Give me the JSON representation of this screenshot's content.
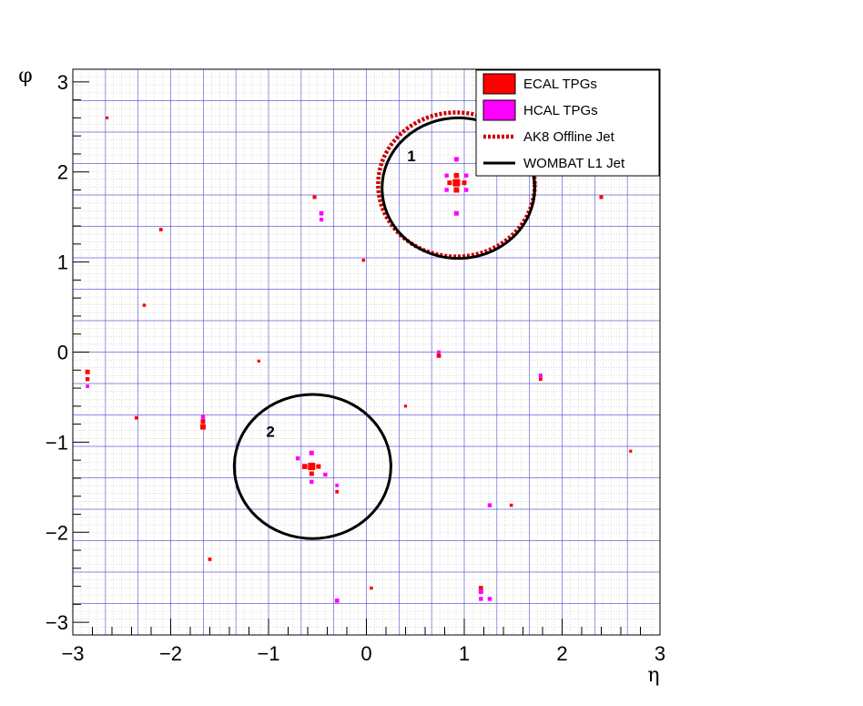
{
  "chart_data": {
    "type": "scatter",
    "title": "",
    "xlabel": "η",
    "ylabel": "φ",
    "xlim": [
      -3,
      3
    ],
    "ylim": [
      -3.14,
      3.14
    ],
    "x_ticks": [
      -3,
      -2,
      -1,
      0,
      1,
      2,
      3
    ],
    "x_tick_labels": [
      "−3",
      "−2",
      "−1",
      "0",
      "1",
      "2",
      "3"
    ],
    "y_ticks": [
      -3,
      -2,
      -1,
      0,
      1,
      2,
      3
    ],
    "y_tick_labels": [
      "−3",
      "−2",
      "−1",
      "0",
      "1",
      "2",
      "3"
    ],
    "grid": true,
    "grid_color": "#3b3bd6",
    "legend_position": "top-right",
    "legend": [
      {
        "label": "ECAL TPGs",
        "style": "box",
        "color": "#ff0000"
      },
      {
        "label": "HCAL TPGs",
        "style": "box",
        "color": "#ff00ff"
      },
      {
        "label": "AK8 Offline Jet",
        "style": "dotted-line",
        "color": "#cc0000"
      },
      {
        "label": "WOMBAT L1 Jet",
        "style": "line",
        "color": "#000000"
      }
    ],
    "jets": [
      {
        "label": "1",
        "label_eta": 0.46,
        "label_phi": 2.12,
        "offline": {
          "eta": 0.92,
          "phi": 1.86,
          "radius": 0.8
        },
        "l1": {
          "eta": 0.94,
          "phi": 1.82,
          "radius": 0.78
        }
      },
      {
        "label": "2",
        "label_eta": -0.98,
        "label_phi": -0.94,
        "offline": null,
        "l1": {
          "eta": -0.55,
          "phi": -1.27,
          "radius": 0.8
        }
      }
    ],
    "series": [
      {
        "name": "ECAL TPGs",
        "color": "#ff0000",
        "points": [
          {
            "eta": 0.92,
            "phi": 1.88,
            "size": 2
          },
          {
            "eta": 0.92,
            "phi": 1.8,
            "size": 1.3
          },
          {
            "eta": 0.92,
            "phi": 1.96,
            "size": 1.2
          },
          {
            "eta": 0.85,
            "phi": 1.88,
            "size": 1
          },
          {
            "eta": 1.0,
            "phi": 1.88,
            "size": 1
          },
          {
            "eta": -0.56,
            "phi": -1.27,
            "size": 2
          },
          {
            "eta": -0.63,
            "phi": -1.27,
            "size": 1.2
          },
          {
            "eta": -0.56,
            "phi": -1.35,
            "size": 1
          },
          {
            "eta": -0.49,
            "phi": -1.27,
            "size": 1
          },
          {
            "eta": -1.67,
            "phi": -0.83,
            "size": 1.3
          },
          {
            "eta": -1.67,
            "phi": -0.77,
            "size": 1
          },
          {
            "eta": -2.85,
            "phi": -0.22,
            "size": 1
          },
          {
            "eta": -2.85,
            "phi": -0.3,
            "size": 0.8
          },
          {
            "eta": 0.74,
            "phi": -0.04,
            "size": 0.9
          },
          {
            "eta": 1.17,
            "phi": -2.62,
            "size": 0.9
          },
          {
            "eta": -0.53,
            "phi": 1.72,
            "size": 0.7
          },
          {
            "eta": 2.4,
            "phi": 1.72,
            "size": 0.7
          },
          {
            "eta": -2.1,
            "phi": 1.36,
            "size": 0.6
          },
          {
            "eta": -2.35,
            "phi": -0.73,
            "size": 0.6
          },
          {
            "eta": 1.78,
            "phi": -0.3,
            "size": 0.6
          },
          {
            "eta": -1.6,
            "phi": -2.3,
            "size": 0.6
          },
          {
            "eta": -0.3,
            "phi": -1.55,
            "size": 0.6
          },
          {
            "eta": 0.05,
            "phi": -2.62,
            "size": 0.5
          },
          {
            "eta": -0.03,
            "phi": 1.02,
            "size": 0.5
          },
          {
            "eta": -2.27,
            "phi": 0.52,
            "size": 0.5
          },
          {
            "eta": 1.48,
            "phi": -1.7,
            "size": 0.5
          },
          {
            "eta": -1.1,
            "phi": -0.1,
            "size": 0.4
          },
          {
            "eta": 2.7,
            "phi": -1.1,
            "size": 0.4
          },
          {
            "eta": -2.65,
            "phi": 2.6,
            "size": 0.4
          },
          {
            "eta": 0.4,
            "phi": -0.6,
            "size": 0.4
          }
        ]
      },
      {
        "name": "HCAL TPGs",
        "color": "#ff00ff",
        "points": [
          {
            "eta": 0.92,
            "phi": 2.14,
            "size": 1
          },
          {
            "eta": 0.92,
            "phi": 1.54,
            "size": 1
          },
          {
            "eta": 0.82,
            "phi": 1.96,
            "size": 0.8
          },
          {
            "eta": 0.82,
            "phi": 1.8,
            "size": 0.8
          },
          {
            "eta": 1.02,
            "phi": 1.8,
            "size": 0.8
          },
          {
            "eta": 1.02,
            "phi": 1.96,
            "size": 0.8
          },
          {
            "eta": -0.56,
            "phi": -1.12,
            "size": 1
          },
          {
            "eta": -0.56,
            "phi": -1.44,
            "size": 0.8
          },
          {
            "eta": -0.7,
            "phi": -1.18,
            "size": 0.8
          },
          {
            "eta": -0.42,
            "phi": -1.36,
            "size": 0.8
          },
          {
            "eta": -1.67,
            "phi": -0.72,
            "size": 0.8
          },
          {
            "eta": -0.46,
            "phi": 1.54,
            "size": 0.9
          },
          {
            "eta": -0.46,
            "phi": 1.47,
            "size": 0.7
          },
          {
            "eta": 1.17,
            "phi": -2.66,
            "size": 1
          },
          {
            "eta": 1.26,
            "phi": -2.74,
            "size": 0.8
          },
          {
            "eta": 1.17,
            "phi": -2.74,
            "size": 0.8
          },
          {
            "eta": 1.26,
            "phi": -1.7,
            "size": 0.8
          },
          {
            "eta": -0.3,
            "phi": -2.76,
            "size": 0.9
          },
          {
            "eta": 1.78,
            "phi": -0.26,
            "size": 0.7
          },
          {
            "eta": -2.85,
            "phi": -0.38,
            "size": 0.6
          },
          {
            "eta": -0.3,
            "phi": -1.48,
            "size": 0.6
          },
          {
            "eta": 0.74,
            "phi": 0.0,
            "size": 0.6
          }
        ]
      }
    ]
  }
}
